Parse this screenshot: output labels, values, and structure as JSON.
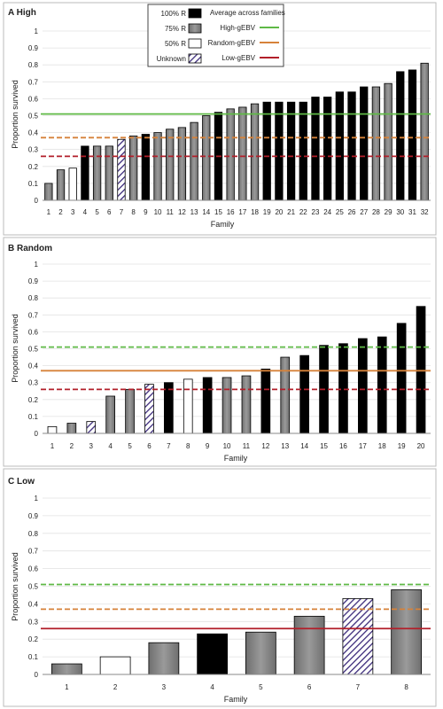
{
  "colors": {
    "cat_100": "#000000",
    "cat_75": "#808080",
    "cat_50": "#ffffff",
    "cat_unknown": "hatch-purple",
    "high_gebv": "#5fb946",
    "random_gebv": "#d6823a",
    "low_gebv": "#b21f2a",
    "panel_border": "#bbbbbb",
    "gridline": "#e2e2e2"
  },
  "legend": {
    "categories": [
      {
        "label": "100% R",
        "key": "c100"
      },
      {
        "label": "75% R",
        "key": "c75"
      },
      {
        "label": "50% R",
        "key": "c50"
      },
      {
        "label": "Unknown",
        "key": "cu"
      }
    ],
    "averages_title": "Average across families",
    "averages": [
      {
        "label": "High-gEBV",
        "color": "#5fb946"
      },
      {
        "label": "Random-gEBV",
        "color": "#d6823a"
      },
      {
        "label": "Low-gEBV",
        "color": "#b21f2a"
      }
    ]
  },
  "chart_data": [
    {
      "type": "bar",
      "panel_title": "A  High",
      "xlabel": "Family",
      "ylabel": "Proportion survived",
      "ylim": [
        0,
        1
      ],
      "yticks": [
        0,
        0.1,
        0.2,
        0.3,
        0.4,
        0.5,
        0.6,
        0.7,
        0.8,
        0.9,
        1
      ],
      "categories": [
        "1",
        "2",
        "3",
        "4",
        "5",
        "6",
        "7",
        "8",
        "9",
        "10",
        "11",
        "12",
        "13",
        "14",
        "15",
        "16",
        "17",
        "18",
        "19",
        "20",
        "21",
        "22",
        "23",
        "24",
        "25",
        "26",
        "27",
        "28",
        "29",
        "30",
        "31",
        "32"
      ],
      "values": [
        0.1,
        0.18,
        0.19,
        0.32,
        0.32,
        0.32,
        0.36,
        0.38,
        0.39,
        0.4,
        0.42,
        0.43,
        0.46,
        0.5,
        0.52,
        0.54,
        0.55,
        0.57,
        0.58,
        0.58,
        0.58,
        0.58,
        0.61,
        0.61,
        0.64,
        0.64,
        0.67,
        0.67,
        0.69,
        0.76,
        0.77,
        0.81
      ],
      "bar_types": [
        "c75",
        "c75",
        "c50",
        "c100",
        "c75",
        "c75",
        "cu",
        "c75",
        "c100",
        "c75",
        "c75",
        "c75",
        "c75",
        "c75",
        "c100",
        "c75",
        "c75",
        "c75",
        "c100",
        "c100",
        "c100",
        "c100",
        "c100",
        "c100",
        "c100",
        "c100",
        "c100",
        "c75",
        "c75",
        "c100",
        "c100",
        "c75"
      ],
      "hlines": [
        {
          "name": "High-gEBV",
          "value": 0.51,
          "style": "solid"
        },
        {
          "name": "Random-gEBV",
          "value": 0.37,
          "style": "dashed"
        },
        {
          "name": "Low-gEBV",
          "value": 0.26,
          "style": "dashed"
        }
      ]
    },
    {
      "type": "bar",
      "panel_title": "B  Random",
      "xlabel": "Family",
      "ylabel": "Proportion survived",
      "ylim": [
        0,
        1
      ],
      "yticks": [
        0,
        0.1,
        0.2,
        0.3,
        0.4,
        0.5,
        0.6,
        0.7,
        0.8,
        0.9,
        1
      ],
      "categories": [
        "1",
        "2",
        "3",
        "4",
        "5",
        "6",
        "7",
        "8",
        "9",
        "10",
        "11",
        "12",
        "13",
        "14",
        "15",
        "16",
        "17",
        "18",
        "19",
        "20"
      ],
      "values": [
        0.04,
        0.06,
        0.07,
        0.22,
        0.26,
        0.29,
        0.3,
        0.32,
        0.33,
        0.33,
        0.34,
        0.38,
        0.45,
        0.46,
        0.52,
        0.53,
        0.56,
        0.57,
        0.65,
        0.75
      ],
      "bar_types": [
        "c50",
        "c75",
        "cu",
        "c75",
        "c75",
        "cu",
        "c100",
        "c50",
        "c100",
        "c75",
        "c75",
        "c100",
        "c75",
        "c100",
        "c100",
        "c100",
        "c100",
        "c100",
        "c100",
        "c100"
      ],
      "hlines": [
        {
          "name": "High-gEBV",
          "value": 0.51,
          "style": "dashed"
        },
        {
          "name": "Random-gEBV",
          "value": 0.37,
          "style": "solid"
        },
        {
          "name": "Low-gEBV",
          "value": 0.26,
          "style": "dashed"
        }
      ]
    },
    {
      "type": "bar",
      "panel_title": "C  Low",
      "xlabel": "Family",
      "ylabel": "Proportion survived",
      "ylim": [
        0,
        1
      ],
      "yticks": [
        0,
        0.1,
        0.2,
        0.3,
        0.4,
        0.5,
        0.6,
        0.7,
        0.8,
        0.9,
        1
      ],
      "categories": [
        "1",
        "2",
        "3",
        "4",
        "5",
        "6",
        "7",
        "8"
      ],
      "values": [
        0.06,
        0.1,
        0.18,
        0.23,
        0.24,
        0.33,
        0.43,
        0.48
      ],
      "bar_types": [
        "c75",
        "c50",
        "c75",
        "c100",
        "c75",
        "c75",
        "cu",
        "c75"
      ],
      "hlines": [
        {
          "name": "High-gEBV",
          "value": 0.51,
          "style": "dashed"
        },
        {
          "name": "Random-gEBV",
          "value": 0.37,
          "style": "dashed"
        },
        {
          "name": "Low-gEBV",
          "value": 0.26,
          "style": "solid"
        }
      ]
    }
  ]
}
